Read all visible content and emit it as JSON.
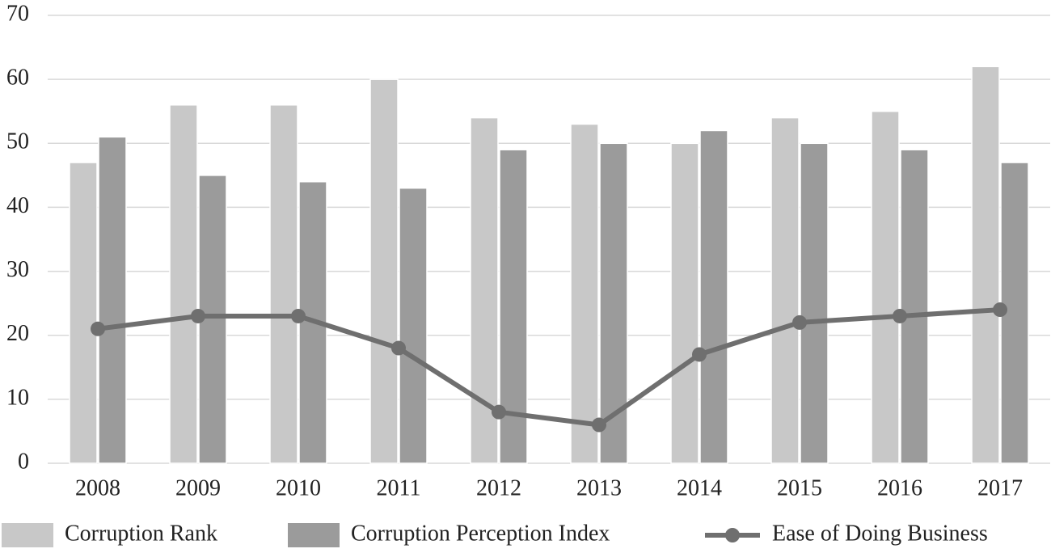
{
  "chart_data": {
    "type": "bar",
    "categories": [
      "2008",
      "2009",
      "2010",
      "2011",
      "2012",
      "2013",
      "2014",
      "2015",
      "2016",
      "2017"
    ],
    "series": [
      {
        "name": "Corruption Rank",
        "type": "bar",
        "color": "#c8c8c8",
        "values": [
          47,
          56,
          56,
          60,
          54,
          53,
          50,
          54,
          55,
          62
        ]
      },
      {
        "name": "Corruption Perception Index",
        "type": "bar",
        "color": "#9b9b9b",
        "values": [
          51,
          45,
          44,
          43,
          49,
          50,
          52,
          50,
          49,
          47
        ]
      },
      {
        "name": "Ease of Doing Business",
        "type": "line",
        "color": "#6f6f6f",
        "values": [
          21,
          23,
          23,
          18,
          8,
          6,
          17,
          22,
          23,
          24
        ]
      }
    ],
    "ylim": [
      0,
      70
    ],
    "yticks": [
      0,
      10,
      20,
      30,
      40,
      50,
      60,
      70
    ],
    "grid": true,
    "legend": "bottom"
  }
}
